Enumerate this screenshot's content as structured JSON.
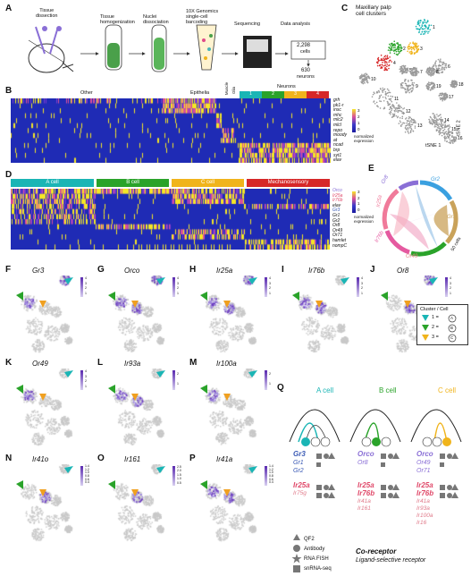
{
  "panels": {
    "A": "A",
    "B": "B",
    "C": "C",
    "D": "D",
    "E": "E",
    "F": "F",
    "G": "G",
    "H": "H",
    "I": "I",
    "J": "J",
    "K": "K",
    "L": "L",
    "M": "M",
    "N": "N",
    "O": "O",
    "P": "P",
    "Q": "Q"
  },
  "workflow": {
    "steps": [
      "Tissue\ndissection",
      "Tissue\nhomogenization",
      "Nuclei\ndissociation",
      "10X Genomics\nsingle-cell\nbarcoding",
      "Sequencing",
      "Data analysis"
    ],
    "cells_count": "2,298",
    "cells_label": "cells",
    "neurons_count": "630",
    "neurons_label": "neurons"
  },
  "tsne": {
    "title": "Maxillary palp\ncell clusters",
    "xlabel": "tSNE 1",
    "ylabel": "tSNE 2",
    "cluster_labels": [
      "1",
      "2",
      "3",
      "4",
      "5",
      "6",
      "7",
      "8",
      "9",
      "10",
      "11",
      "12",
      "13",
      "14",
      "15",
      "16",
      "17",
      "18",
      "19"
    ],
    "colors": {
      "c1": "#1ab5b5",
      "c2": "#2aa32a",
      "c3": "#f0b41c",
      "c4": "#d62728",
      "grey": "#9a9a9a"
    }
  },
  "heatmap_b": {
    "groups": [
      "Other",
      "Epithelia",
      "Muscle",
      "Glia"
    ],
    "neurons_label": "Neurons",
    "neuron_clusters": [
      "1",
      "2",
      "3",
      "4"
    ],
    "genes": [
      "grh",
      "pk1-r",
      "insc",
      "mhc",
      "mlc2",
      "mlcl",
      "repo",
      "moody",
      "at",
      "ncad",
      "brp",
      "syt1",
      "elav"
    ],
    "legend_label": "normalized\nexpression",
    "legend_ticks": [
      "3",
      "2",
      "1",
      "0"
    ]
  },
  "heatmap_d": {
    "groups": [
      "A cell",
      "B cell",
      "C cell",
      "Mechanosensory"
    ],
    "genes": [
      "Orco",
      "Ir25a",
      "Ir76b",
      "elav",
      "Gr3",
      "Gr1",
      "Gr2",
      "Or8",
      "Or49",
      "Or71",
      "hamlet",
      "nompC"
    ],
    "legend_label": "normalized\nexpression",
    "legend_ticks": [
      "3",
      "2",
      "1",
      "0"
    ]
  },
  "chord": {
    "labels": [
      "Or8",
      "Gr2",
      "Gr1",
      "Or49",
      "Ir76b",
      "Ir25a"
    ],
    "scale_label": "50 cells",
    "colors": {
      "Or8": "#8a6fd6",
      "Gr2": "#3aa0e0",
      "Gr1": "#c9a25a",
      "Or49": "#e08080",
      "Ir76b": "#e55aa0",
      "Ir25a": "#f07a9a"
    }
  },
  "feature_plots": {
    "F": {
      "gene": "Gr3",
      "scale": [
        "4",
        "3",
        "2",
        "1"
      ]
    },
    "G": {
      "gene": "Orco",
      "scale": [
        "4",
        "3",
        "2",
        "1"
      ]
    },
    "H": {
      "gene": "Ir25a",
      "scale": [
        "4",
        "3",
        "2",
        "1"
      ]
    },
    "I": {
      "gene": "Ir76b",
      "scale": [
        "4",
        "3",
        "2",
        "1"
      ]
    },
    "J": {
      "gene": "Or8",
      "scale": [
        "4",
        "3",
        "2",
        "1"
      ]
    },
    "K": {
      "gene": "Or49",
      "scale": [
        "4",
        "3",
        "2",
        "1"
      ]
    },
    "L": {
      "gene": "Ir93a",
      "scale": [
        "2",
        "1"
      ]
    },
    "M": {
      "gene": "Ir100a",
      "scale": [
        "2",
        "1"
      ]
    },
    "N": {
      "gene": "Ir41o",
      "scale": [
        "1.4",
        "1.2",
        "1.0",
        "0.8",
        "0.6",
        "0.4"
      ]
    },
    "O": {
      "gene": "Ir161",
      "scale": [
        "2.5",
        "2.0",
        "1.5",
        "1.0",
        "0.5"
      ]
    },
    "P": {
      "gene": "Ir41a",
      "scale": [
        "1.4",
        "1.2",
        "1.0",
        "0.8",
        "0.6",
        "0.4"
      ]
    },
    "scale_label": "Normalized\nexpression",
    "xlabel": "tSNE 1",
    "ylabel": "tSNE 2"
  },
  "cluster_key": {
    "title": "Cluster / Cell",
    "items": [
      {
        "num": "1",
        "cell": "A"
      },
      {
        "num": "2",
        "cell": "B"
      },
      {
        "num": "3",
        "cell": "C"
      }
    ]
  },
  "q": {
    "cells": [
      {
        "title": "A cell",
        "co_receptor": "Gr3",
        "lists": [
          [
            "Gr1",
            "Gr2"
          ]
        ],
        "ir_head": "Ir25a",
        "ir_list": [
          "Ir75g"
        ]
      },
      {
        "title": "B cell",
        "co_receptor": "Orco",
        "lists": [
          [
            "Or8"
          ]
        ],
        "ir_head": "Ir25a",
        "ir_head2": "Ir76b",
        "ir_list": [
          "Ir41a",
          "Ir161"
        ]
      },
      {
        "title": "C cell",
        "co_receptor": "Orco",
        "lists": [
          [
            "Or49",
            "Or71"
          ]
        ],
        "ir_head": "Ir25a",
        "ir_head2": "Ir76b",
        "ir_list": [
          "Ir41a",
          "Ir93a",
          "Ir100a",
          "Ir16"
        ]
      }
    ],
    "legend": [
      {
        "icon": "triangle",
        "label": "QF2"
      },
      {
        "icon": "circle",
        "label": "Antibody"
      },
      {
        "icon": "star",
        "label": "RNA FISH"
      },
      {
        "icon": "square",
        "label": "snRNA-seq"
      }
    ],
    "co_receptor_label": "Co-receptor",
    "ligand_label": "Ligand-selective receptor"
  }
}
